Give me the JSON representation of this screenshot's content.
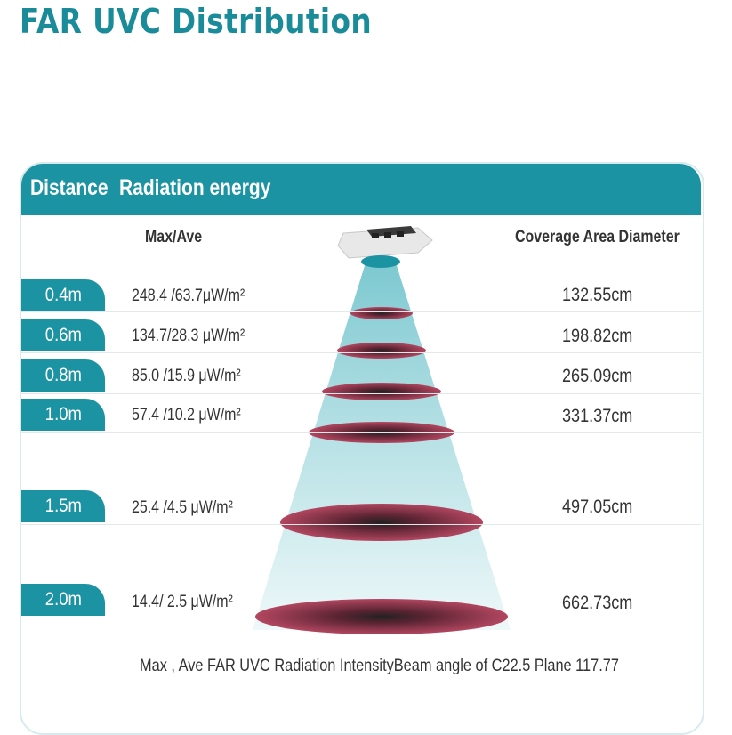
{
  "title": "FAR UVC Distribution",
  "header": {
    "distance_label": "Distance",
    "radiation_label": "Radiation energy"
  },
  "subheader": {
    "max_ave": "Max/Ave",
    "coverage": "Coverage Area Diameter"
  },
  "rows": [
    {
      "distance": "0.4m",
      "energy": "248.4 /63.7μW/m²",
      "diameter": "132.55cm"
    },
    {
      "distance": "0.6m",
      "energy": "134.7/28.3 μW/m²",
      "diameter": "198.82cm"
    },
    {
      "distance": "0.8m",
      "energy": "85.0 /15.9 μW/m²",
      "diameter": "265.09cm"
    },
    {
      "distance": "1.0m",
      "energy": "57.4 /10.2 μW/m²",
      "diameter": "331.37cm"
    },
    {
      "distance": "1.5m",
      "energy": "25.4 /4.5 μW/m²",
      "diameter": "497.05cm"
    },
    {
      "distance": "2.0m",
      "energy": "14.4/ 2.5 μW/m²",
      "diameter": "662.73cm"
    }
  ],
  "caption": "Max , Ave FAR UVC Radiation IntensityBeam angle of C22.5 Plane 117.77",
  "colors": {
    "teal": "#1b93a2",
    "title_teal": "#1a8b99",
    "spot_red": "#a63d55",
    "beam_light": "#bfe6ea"
  }
}
